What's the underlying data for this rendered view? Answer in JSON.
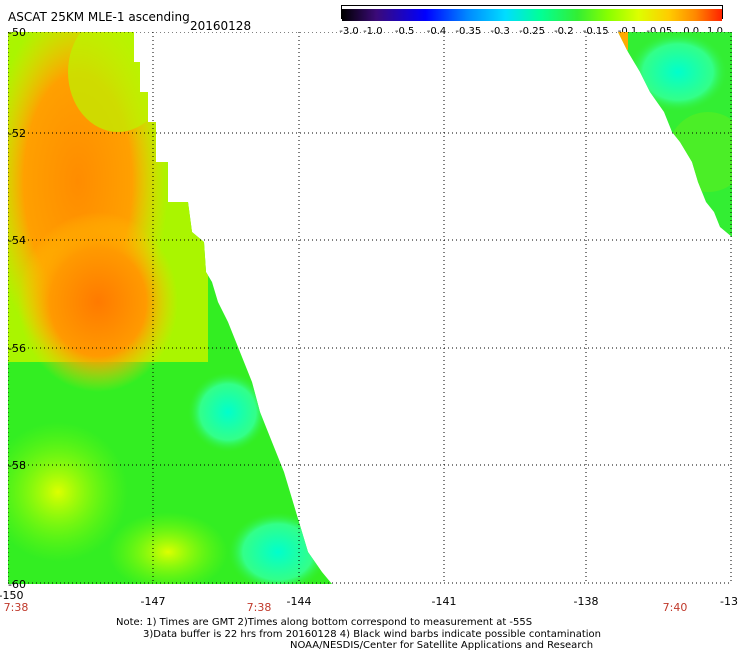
{
  "header": {
    "title": "ASCAT 25KM MLE-1 ascending",
    "date": "20160128"
  },
  "colorbar": {
    "labels": [
      "-3.0",
      "-1.0",
      "-0.5",
      "-0.4",
      "-0.35",
      "-0.3",
      "-0.25",
      "-0.2",
      "-0.15",
      "-0.1",
      "-0.05",
      "0.0",
      "1.0"
    ],
    "colors": [
      "#000000",
      "#3b0a78",
      "#0000ff",
      "#0088ff",
      "#00ddff",
      "#00ff99",
      "#33ee33",
      "#88ff00",
      "#ddff00",
      "#ffcc00",
      "#ff8800",
      "#ff2200"
    ]
  },
  "map": {
    "lon_labels": [
      "-150",
      "-147",
      "-144",
      "-141",
      "-138",
      "-13"
    ],
    "lat_labels": [
      "-50",
      "-52",
      "-54",
      "-56",
      "-58",
      "-60"
    ],
    "time_labels": [
      "7:38",
      "7:38",
      "7:40"
    ],
    "grid": "dotted"
  },
  "notes": {
    "line1": "Note: 1) Times are GMT 2)Times along bottom correspond to measurement at -55S",
    "line2": "3)Data buffer is 22 hrs from 20160128 4) Black wind barbs indicate possible contamination",
    "line3": "NOAA/NESDIS/Center for Satellite Applications and Research"
  }
}
